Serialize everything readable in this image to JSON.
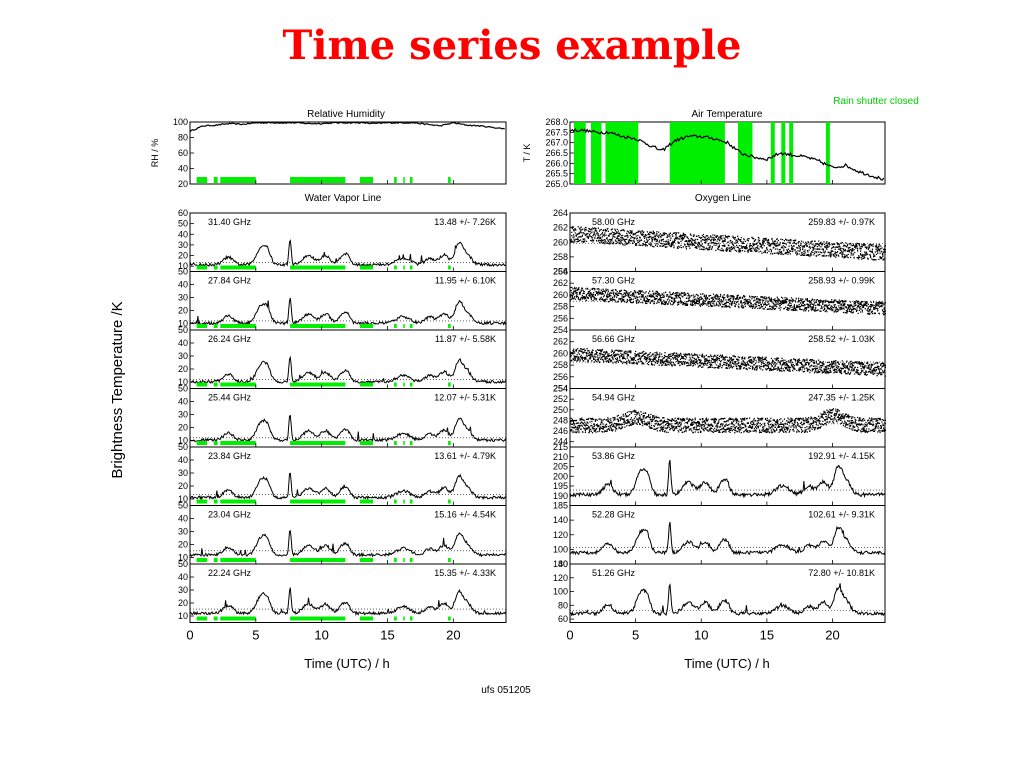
{
  "slide": {
    "title": "Time series example"
  },
  "figure": {
    "ylabel": "Brightness Temperature /K",
    "xlabel": "Time (UTC) / h",
    "footer": "ufs 051205",
    "rain_note": "Rain shutter closed",
    "rain_color": "#00ee00",
    "x_ticks": [
      0,
      5,
      10,
      15,
      20
    ],
    "xlim": [
      0,
      24
    ]
  },
  "chart_data": {
    "type": "line",
    "x_range": [
      0,
      24
    ],
    "rain_intervals": [
      [
        0.5,
        1.3
      ],
      [
        1.8,
        2.1
      ],
      [
        2.3,
        5.0
      ],
      [
        7.6,
        11.8
      ],
      [
        12.9,
        13.9
      ],
      [
        15.5,
        15.7
      ],
      [
        16.2,
        16.3
      ],
      [
        16.7,
        16.9
      ],
      [
        19.6,
        19.8
      ]
    ],
    "rh": {
      "title": "Relative Humidity",
      "ylabel": "RH / %",
      "y_ticks": [
        20,
        40,
        60,
        80,
        100
      ],
      "ylim": [
        20,
        100
      ],
      "x": [
        0,
        1,
        2,
        3,
        4,
        5,
        6,
        7,
        8,
        9,
        10,
        11,
        12,
        13,
        14,
        15,
        16,
        17,
        18,
        19,
        20,
        21,
        22,
        23,
        24
      ],
      "y": [
        88,
        95,
        96,
        98,
        97,
        99,
        99,
        99,
        99,
        98,
        98,
        99,
        99,
        99,
        98,
        99,
        99,
        99,
        97,
        95,
        99,
        96,
        95,
        93,
        91
      ]
    },
    "air_temp": {
      "title": "Air Temperature",
      "ylabel": "T / K",
      "y_ticks": [
        "265.0",
        "265.5",
        "266.0",
        "266.5",
        "267.0",
        "267.5",
        "268.0"
      ],
      "ylim": [
        265.0,
        268.0
      ],
      "x": [
        0,
        1,
        2,
        3,
        4,
        5,
        6,
        7,
        8,
        9,
        10,
        11,
        12,
        13,
        14,
        15,
        16,
        17,
        18,
        19,
        20,
        21,
        22,
        23,
        24
      ],
      "y": [
        267.6,
        267.6,
        267.5,
        267.5,
        267.3,
        267.2,
        266.9,
        266.6,
        267.1,
        267.3,
        267.3,
        267.2,
        267.0,
        266.5,
        266.3,
        266.2,
        266.5,
        266.4,
        266.3,
        266.1,
        265.8,
        265.9,
        265.6,
        265.4,
        265.2
      ]
    },
    "water_vapor": {
      "title": "Water Vapor Line",
      "channels": [
        {
          "freq": "31.40 GHz",
          "stats": "13.48 +/-  7.26K",
          "y_ticks": [
            10,
            20,
            30,
            40,
            50,
            60
          ],
          "ylim": [
            5,
            60
          ],
          "mean": 13.48,
          "std": 7.26
        },
        {
          "freq": "27.84 GHz",
          "stats": "11.95 +/-  6.10K",
          "y_ticks": [
            10,
            20,
            30,
            40,
            50
          ],
          "ylim": [
            5,
            50
          ],
          "mean": 11.95,
          "std": 6.1
        },
        {
          "freq": "26.24 GHz",
          "stats": "11.87 +/-  5.58K",
          "y_ticks": [
            10,
            20,
            30,
            40,
            50
          ],
          "ylim": [
            5,
            50
          ],
          "mean": 11.87,
          "std": 5.58
        },
        {
          "freq": "25.44 GHz",
          "stats": "12.07 +/-  5.31K",
          "y_ticks": [
            10,
            20,
            30,
            40,
            50
          ],
          "ylim": [
            5,
            50
          ],
          "mean": 12.07,
          "std": 5.31
        },
        {
          "freq": "23.84 GHz",
          "stats": "13.61 +/-  4.79K",
          "y_ticks": [
            10,
            20,
            30,
            40,
            50
          ],
          "ylim": [
            5,
            50
          ],
          "mean": 13.61,
          "std": 4.79
        },
        {
          "freq": "23.04 GHz",
          "stats": "15.16 +/-  4.54K",
          "y_ticks": [
            10,
            20,
            30,
            40,
            50
          ],
          "ylim": [
            5,
            50
          ],
          "mean": 15.16,
          "std": 4.54
        },
        {
          "freq": "22.24 GHz",
          "stats": "15.35 +/-  4.33K",
          "y_ticks": [
            10,
            20,
            30,
            40,
            50
          ],
          "ylim": [
            5,
            50
          ],
          "mean": 15.35,
          "std": 4.33
        }
      ]
    },
    "oxygen": {
      "title": "Oxygen Line",
      "channels": [
        {
          "freq": "58.00 GHz",
          "stats": "259.83 +/-  0.97K",
          "y_ticks": [
            256,
            258,
            260,
            262,
            264
          ],
          "ylim": [
            256,
            264
          ],
          "mean": 259.83,
          "std": 0.97
        },
        {
          "freq": "57.30 GHz",
          "stats": "258.93 +/-  0.99K",
          "y_ticks": [
            254,
            256,
            258,
            260,
            262,
            264
          ],
          "ylim": [
            254,
            264
          ],
          "mean": 258.93,
          "std": 0.99
        },
        {
          "freq": "56.66 GHz",
          "stats": "258.52 +/-  1.03K",
          "y_ticks": [
            254,
            256,
            258,
            260,
            262
          ],
          "ylim": [
            254,
            264
          ],
          "mean": 258.52,
          "std": 1.03
        },
        {
          "freq": "54.94 GHz",
          "stats": "247.35 +/-  1.25K",
          "y_ticks": [
            244,
            246,
            248,
            250,
            252,
            254
          ],
          "ylim": [
            243,
            254
          ],
          "mean": 247.35,
          "std": 1.25
        },
        {
          "freq": "53.86 GHz",
          "stats": "192.91 +/-  4.15K",
          "y_ticks": [
            185,
            190,
            195,
            200,
            205,
            210,
            215
          ],
          "ylim": [
            185,
            215
          ],
          "mean": 192.91,
          "std": 4.15
        },
        {
          "freq": "52.28 GHz",
          "stats": "102.61 +/-  9.31K",
          "y_ticks": [
            80,
            100,
            120,
            140
          ],
          "ylim": [
            80,
            160
          ],
          "mean": 102.61,
          "std": 9.31
        },
        {
          "freq": "51.26 GHz",
          "stats": "72.80 +/- 10.81K",
          "y_ticks": [
            60,
            80,
            100,
            120,
            140
          ],
          "ylim": [
            55,
            140
          ],
          "mean": 72.8,
          "std": 10.81
        }
      ]
    }
  }
}
